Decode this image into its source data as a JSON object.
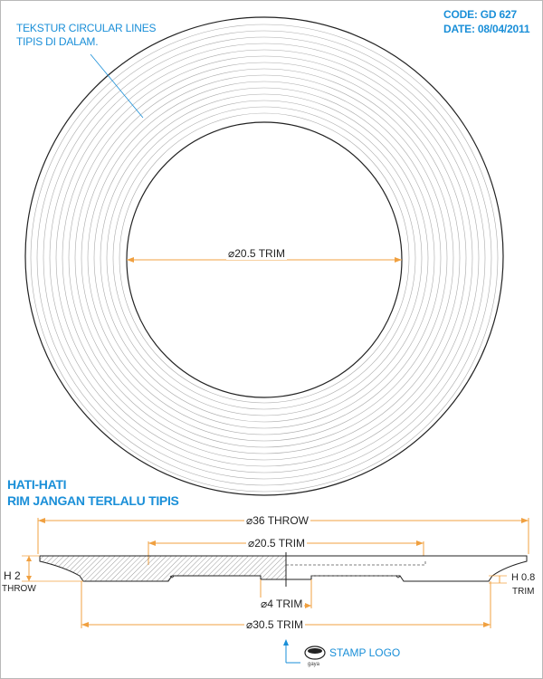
{
  "header": {
    "code": "CODE: GD 627",
    "date": "DATE: 08/04/2011"
  },
  "notes": {
    "texture_line1": "TEKSTUR CIRCULAR LINES",
    "texture_line2": "TIPIS DI DALAM.",
    "warning_line1": "HATI-HATI",
    "warning_line2": "RIM JANGAN TERLALU TIPIS"
  },
  "dimensions": {
    "inner_trim_top": "⌀20.5 TRIM",
    "throw": "⌀36 THROW",
    "inner_trim_side": "⌀20.5 TRIM",
    "foot_trim": "⌀4 TRIM",
    "base_trim": "⌀30.5 TRIM",
    "height_left": "H 2",
    "height_left_sub": "THROW",
    "height_right": "H 0.8",
    "height_right_sub": "TRIM"
  },
  "stamp": {
    "label": "STAMP LOGO",
    "brand": "gaya"
  },
  "colors": {
    "accent": "#1a8fd8",
    "dimension": "#f0a040",
    "line": "#222222",
    "ring_lines": "#aaaaaa"
  }
}
